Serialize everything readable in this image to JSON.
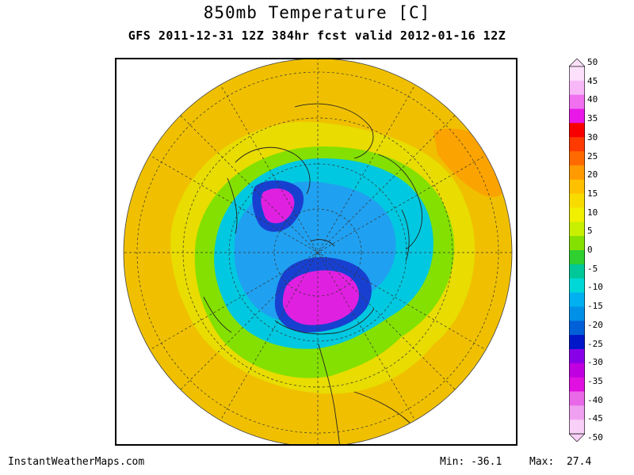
{
  "header": {
    "title": "850mb Temperature [C]",
    "subtitle": "GFS 2011-12-31 12Z 384hr fcst valid 2012-01-16 12Z"
  },
  "colorbar": {
    "labels": [
      "50",
      "45",
      "40",
      "35",
      "30",
      "25",
      "20",
      "15",
      "10",
      "5",
      "0",
      "-5",
      "-10",
      "-15",
      "-20",
      "-25",
      "-30",
      "-35",
      "-40",
      "-45",
      "-50"
    ],
    "colors": [
      "#fce0fc",
      "#f8b8f8",
      "#f070f0",
      "#e818e8",
      "#f80000",
      "#ff3a00",
      "#ff6a00",
      "#ff9a00",
      "#ffc000",
      "#f8dc00",
      "#f0f000",
      "#c8f000",
      "#84e000",
      "#30d030",
      "#00c898",
      "#00d8d8",
      "#00b0f0",
      "#0090e8",
      "#0060d8",
      "#0018c8",
      "#8800e8",
      "#c000e0",
      "#e010e0",
      "#e868e8",
      "#f0a0f0",
      "#f8d0f8"
    ]
  },
  "footer": {
    "site": "InstantWeatherMaps.com",
    "min_label": "Min:",
    "min_value": "-36.1",
    "max_label": "Max:",
    "max_value": "27.4"
  },
  "map": {
    "projection": "north-polar-stereographic",
    "palette": {
      "ocean_warm": "#f0c000",
      "midlat": "#e8dc00",
      "cool": "#84e000",
      "cold": "#00c8e0",
      "colder": "#20a0f0",
      "very_cold": "#1840d0",
      "extreme": "#e020e0"
    }
  }
}
